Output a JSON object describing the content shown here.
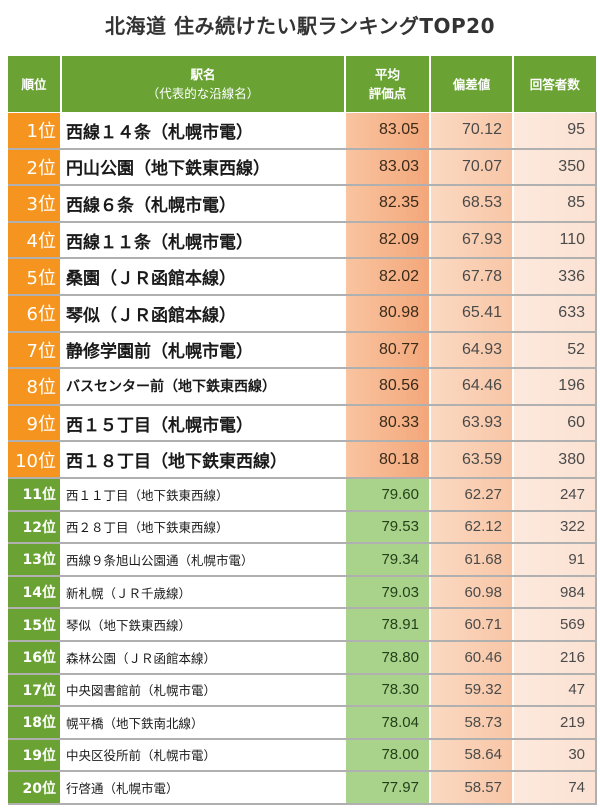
{
  "title": "北海道  住み続けたい駅ランキングTOP20",
  "header": {
    "rank": "順位",
    "station_line1": "駅名",
    "station_line2": "（代表的な沿線名）",
    "avg_line1": "平均",
    "avg_line2": "評価点",
    "deviation": "偏差値",
    "responses": "回答者数"
  },
  "colors": {
    "header_green": "#6aa334",
    "top10_orange": "#f5951f",
    "avg_top_orange": "#f3a77a",
    "avg_bottom_green": "#a9d38a",
    "deviation_bg": "#f8c6a6",
    "responses_bg": "#fbe2d3"
  },
  "rows": [
    {
      "rank": "1位",
      "station": "西線１４条（札幌市電）",
      "avg": "83.05",
      "dev": "70.12",
      "count": "95"
    },
    {
      "rank": "2位",
      "station": "円山公園（地下鉄東西線）",
      "avg": "83.03",
      "dev": "70.07",
      "count": "350"
    },
    {
      "rank": "3位",
      "station": "西線６条（札幌市電）",
      "avg": "82.35",
      "dev": "68.53",
      "count": "85"
    },
    {
      "rank": "4位",
      "station": "西線１１条（札幌市電）",
      "avg": "82.09",
      "dev": "67.93",
      "count": "110"
    },
    {
      "rank": "5位",
      "station": "桑園（ＪＲ函館本線）",
      "avg": "82.02",
      "dev": "67.78",
      "count": "336"
    },
    {
      "rank": "6位",
      "station": "琴似（ＪＲ函館本線）",
      "avg": "80.98",
      "dev": "65.41",
      "count": "633"
    },
    {
      "rank": "7位",
      "station": "静修学園前（札幌市電）",
      "avg": "80.77",
      "dev": "64.93",
      "count": "52"
    },
    {
      "rank": "8位",
      "station": "バスセンター前（地下鉄東西線）",
      "avg": "80.56",
      "dev": "64.46",
      "count": "196"
    },
    {
      "rank": "9位",
      "station": "西１５丁目（札幌市電）",
      "avg": "80.33",
      "dev": "63.93",
      "count": "60"
    },
    {
      "rank": "10位",
      "station": "西１８丁目（地下鉄東西線）",
      "avg": "80.18",
      "dev": "63.59",
      "count": "380"
    },
    {
      "rank": "11位",
      "station": "西１１丁目（地下鉄東西線）",
      "avg": "79.60",
      "dev": "62.27",
      "count": "247"
    },
    {
      "rank": "12位",
      "station": "西２８丁目（地下鉄東西線）",
      "avg": "79.53",
      "dev": "62.12",
      "count": "322"
    },
    {
      "rank": "13位",
      "station": "西線９条旭山公園通（札幌市電）",
      "avg": "79.34",
      "dev": "61.68",
      "count": "91"
    },
    {
      "rank": "14位",
      "station": "新札幌（ＪＲ千歳線）",
      "avg": "79.03",
      "dev": "60.98",
      "count": "984"
    },
    {
      "rank": "15位",
      "station": "琴似（地下鉄東西線）",
      "avg": "78.91",
      "dev": "60.71",
      "count": "569"
    },
    {
      "rank": "16位",
      "station": "森林公園（ＪＲ函館本線）",
      "avg": "78.80",
      "dev": "60.46",
      "count": "216"
    },
    {
      "rank": "17位",
      "station": "中央図書館前（札幌市電）",
      "avg": "78.30",
      "dev": "59.32",
      "count": "47"
    },
    {
      "rank": "18位",
      "station": "幌平橋（地下鉄南北線）",
      "avg": "78.04",
      "dev": "58.73",
      "count": "219"
    },
    {
      "rank": "19位",
      "station": "中央区役所前（札幌市電）",
      "avg": "78.00",
      "dev": "58.64",
      "count": "30"
    },
    {
      "rank": "20位",
      "station": "行啓通（札幌市電）",
      "avg": "77.97",
      "dev": "58.57",
      "count": "74"
    }
  ]
}
